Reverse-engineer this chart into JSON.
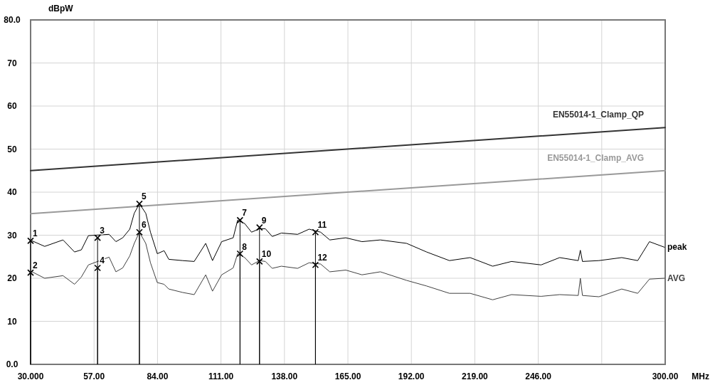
{
  "chart_data": {
    "type": "line",
    "xlabel": "MHz",
    "ylabel": "dBpW",
    "xlim": [
      30,
      300
    ],
    "xticks": [
      {
        "value": 30,
        "label": "30.000"
      },
      {
        "value": 57,
        "label": "57.00"
      },
      {
        "value": 84,
        "label": "84.00"
      },
      {
        "value": 111,
        "label": "111.00"
      },
      {
        "value": 138,
        "label": "138.00"
      },
      {
        "value": 165,
        "label": "165.00"
      },
      {
        "value": 192,
        "label": "192.00"
      },
      {
        "value": 219,
        "label": "219.00"
      },
      {
        "value": 246,
        "label": "246.00"
      },
      {
        "value": 273,
        "label": null
      },
      {
        "value": 300,
        "label": "300.00"
      }
    ],
    "ylim": [
      0,
      80
    ],
    "yticks": [
      {
        "value": 0,
        "label": "0.0"
      },
      10,
      20,
      30,
      40,
      50,
      60,
      70,
      {
        "value": 80,
        "label": "80.0"
      }
    ],
    "grid": true,
    "marker": "none",
    "line_style": "solid",
    "annotations": [
      {
        "text": "1",
        "x": 30,
        "y": 28.7
      },
      {
        "text": "2",
        "x": 30,
        "y": 21.3
      },
      {
        "text": "3",
        "x": 58.5,
        "y": 29.4
      },
      {
        "text": "4",
        "x": 58.5,
        "y": 22.4
      },
      {
        "text": "5",
        "x": 76.3,
        "y": 37.3
      },
      {
        "text": "6",
        "x": 76.3,
        "y": 30.7
      },
      {
        "text": "7",
        "x": 119.1,
        "y": 33.5
      },
      {
        "text": "8",
        "x": 119.1,
        "y": 25.7
      },
      {
        "text": "9",
        "x": 127.4,
        "y": 31.8
      },
      {
        "text": "10",
        "x": 127.4,
        "y": 23.9
      },
      {
        "text": "11",
        "x": 151.2,
        "y": 30.7
      },
      {
        "text": "12",
        "x": 151.2,
        "y": 23.1
      }
    ],
    "series": [
      {
        "name": "EN55014-1_Clamp_QP",
        "color": "#333333",
        "x": [
          30,
          300
        ],
        "values": [
          45,
          55
        ]
      },
      {
        "name": "EN55014-1_Clamp_AVG",
        "color": "#999999",
        "x": [
          30,
          300
        ],
        "values": [
          35,
          45
        ]
      },
      {
        "name": "peak",
        "color": "#000000",
        "x": [
          30.6,
          36.0,
          43.8,
          48.7,
          51.6,
          54.6,
          63.4,
          66.3,
          69.2,
          72.2,
          74.1,
          76.3,
          79.0,
          81.0,
          83.9,
          86.8,
          88.8,
          94.7,
          99.6,
          104.5,
          107.4,
          111.3,
          116.2,
          118.1,
          121.1,
          124.0,
          127.4,
          129.9,
          132.8,
          136.7,
          143.6,
          148.5,
          153.4,
          157.3,
          164.1,
          171.0,
          178.8,
          190.0,
          198.5,
          208.2,
          217.0,
          226.6,
          234.6,
          247.2,
          255.1,
          263.0,
          263.9,
          264.8,
          271.8,
          281.5,
          288.3,
          293.3,
          299.7
        ],
        "values": [
          28.7,
          27.4,
          28.9,
          26.1,
          26.6,
          29.9,
          30.2,
          28.5,
          29.4,
          31.4,
          35.1,
          37.3,
          35.1,
          30.7,
          25.7,
          26.4,
          24.4,
          24.1,
          23.9,
          28.1,
          24.1,
          28.5,
          29.4,
          33.5,
          32.7,
          30.7,
          31.5,
          31.5,
          29.7,
          30.5,
          30.2,
          31.4,
          30.7,
          28.9,
          29.4,
          28.5,
          28.9,
          28.1,
          26.1,
          24.1,
          24.8,
          22.8,
          23.9,
          23.1,
          24.8,
          24.1,
          26.5,
          23.9,
          24.1,
          24.8,
          24.1,
          28.5,
          27.2
        ]
      },
      {
        "name": "AVG",
        "color": "#404040",
        "x": [
          30.6,
          36.0,
          43.8,
          48.7,
          51.6,
          54.6,
          63.4,
          66.3,
          69.2,
          72.2,
          74.1,
          76.3,
          79.0,
          81.0,
          83.9,
          86.8,
          88.8,
          94.7,
          99.6,
          104.5,
          107.4,
          111.3,
          116.2,
          118.1,
          121.1,
          124.0,
          127.4,
          129.9,
          132.8,
          136.7,
          143.6,
          148.5,
          153.4,
          157.3,
          164.1,
          171.0,
          178.8,
          190.0,
          198.5,
          208.2,
          217.0,
          226.6,
          234.6,
          247.2,
          255.1,
          263.0,
          263.9,
          264.8,
          271.8,
          281.5,
          288.3,
          293.3,
          299.7
        ],
        "values": [
          21.5,
          20.0,
          20.6,
          18.6,
          20.3,
          23.1,
          24.9,
          21.5,
          22.4,
          25.2,
          28.1,
          30.7,
          28.1,
          23.6,
          19.0,
          18.6,
          17.5,
          16.7,
          16.2,
          20.8,
          17.0,
          20.8,
          22.4,
          25.7,
          24.8,
          23.1,
          24.1,
          23.9,
          22.3,
          22.8,
          22.3,
          23.6,
          23.3,
          21.5,
          21.9,
          20.8,
          21.5,
          19.5,
          18.2,
          16.5,
          16.5,
          15.0,
          16.2,
          15.8,
          16.2,
          16.0,
          20.0,
          16.0,
          15.7,
          17.5,
          16.5,
          19.8,
          20.0
        ]
      },
      {
        "type": "lollipop",
        "color": "#000000",
        "marker": "cross",
        "x": [
          30,
          58.5,
          76.3,
          119.1,
          127.4,
          151.2
        ],
        "values": [
          28.7,
          29.4,
          37.3,
          33.5,
          31.8,
          30.7
        ]
      },
      {
        "type": "lollipop",
        "color": "#000000",
        "marker": "cross",
        "x": [
          30,
          58.5,
          76.3,
          119.1,
          127.4,
          151.2
        ],
        "values": [
          21.3,
          22.4,
          30.7,
          25.7,
          23.9,
          23.1
        ]
      }
    ]
  }
}
